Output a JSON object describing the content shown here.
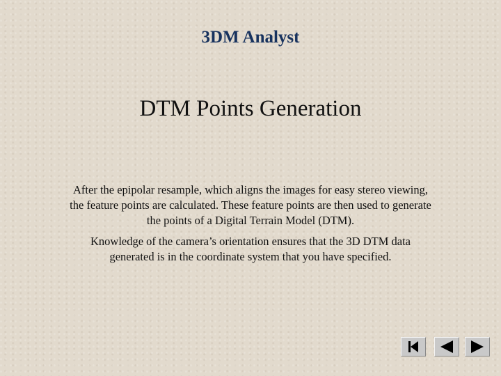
{
  "header": {
    "title": "3DM Analyst"
  },
  "slide": {
    "title": "DTM Points Generation",
    "paragraphs": [
      [
        "After the epipolar resample, which aligns the images for easy stereo viewing,",
        "the feature points are calculated. These feature points are then used to generate",
        "the points of a Digital Terrain Model (DTM)."
      ],
      [
        "Knowledge of the camera’s orientation ensures that the 3D DTM data",
        "generated is in the coordinate system that you have specified."
      ]
    ]
  }
}
